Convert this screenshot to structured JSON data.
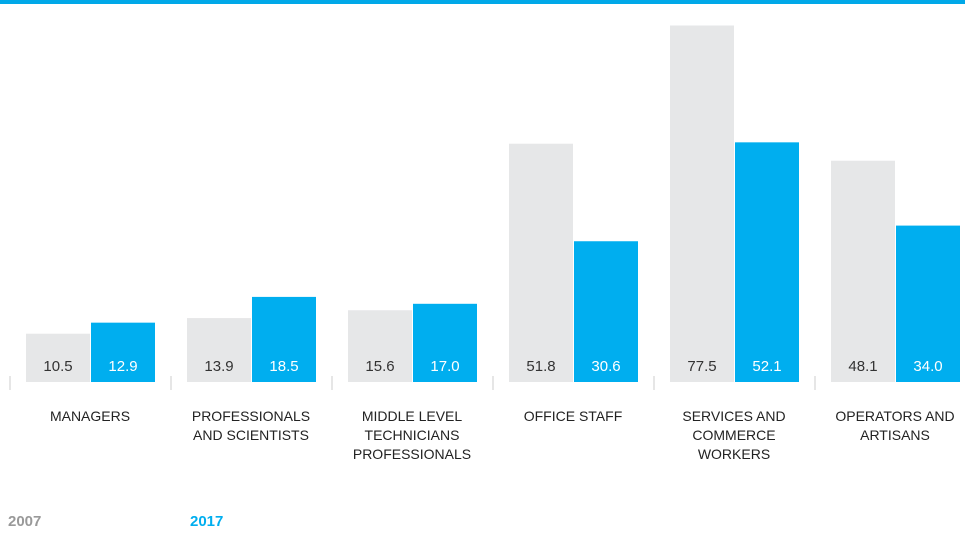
{
  "chart_data": {
    "type": "bar",
    "categories": [
      "MANAGERS",
      "PROFESSIONALS AND SCIENTISTS",
      "MIDDLE LEVEL TECHNICIANS PROFESSIONALS",
      "OFFICE STAFF",
      "SERVICES AND COMMERCE WORKERS",
      "OPERATORS AND ARTISANS"
    ],
    "series": [
      {
        "name": "2007",
        "color": "#e6e7e8",
        "values": [
          10.5,
          13.9,
          15.6,
          51.8,
          77.5,
          48.1
        ]
      },
      {
        "name": "2017",
        "color": "#00aeef",
        "values": [
          12.9,
          18.5,
          17.0,
          30.6,
          52.1,
          34.0
        ],
        "value_labels": [
          "12.9",
          "18.5",
          "17.0",
          "30.6",
          "52.1",
          "34.0"
        ]
      }
    ]
  }
}
